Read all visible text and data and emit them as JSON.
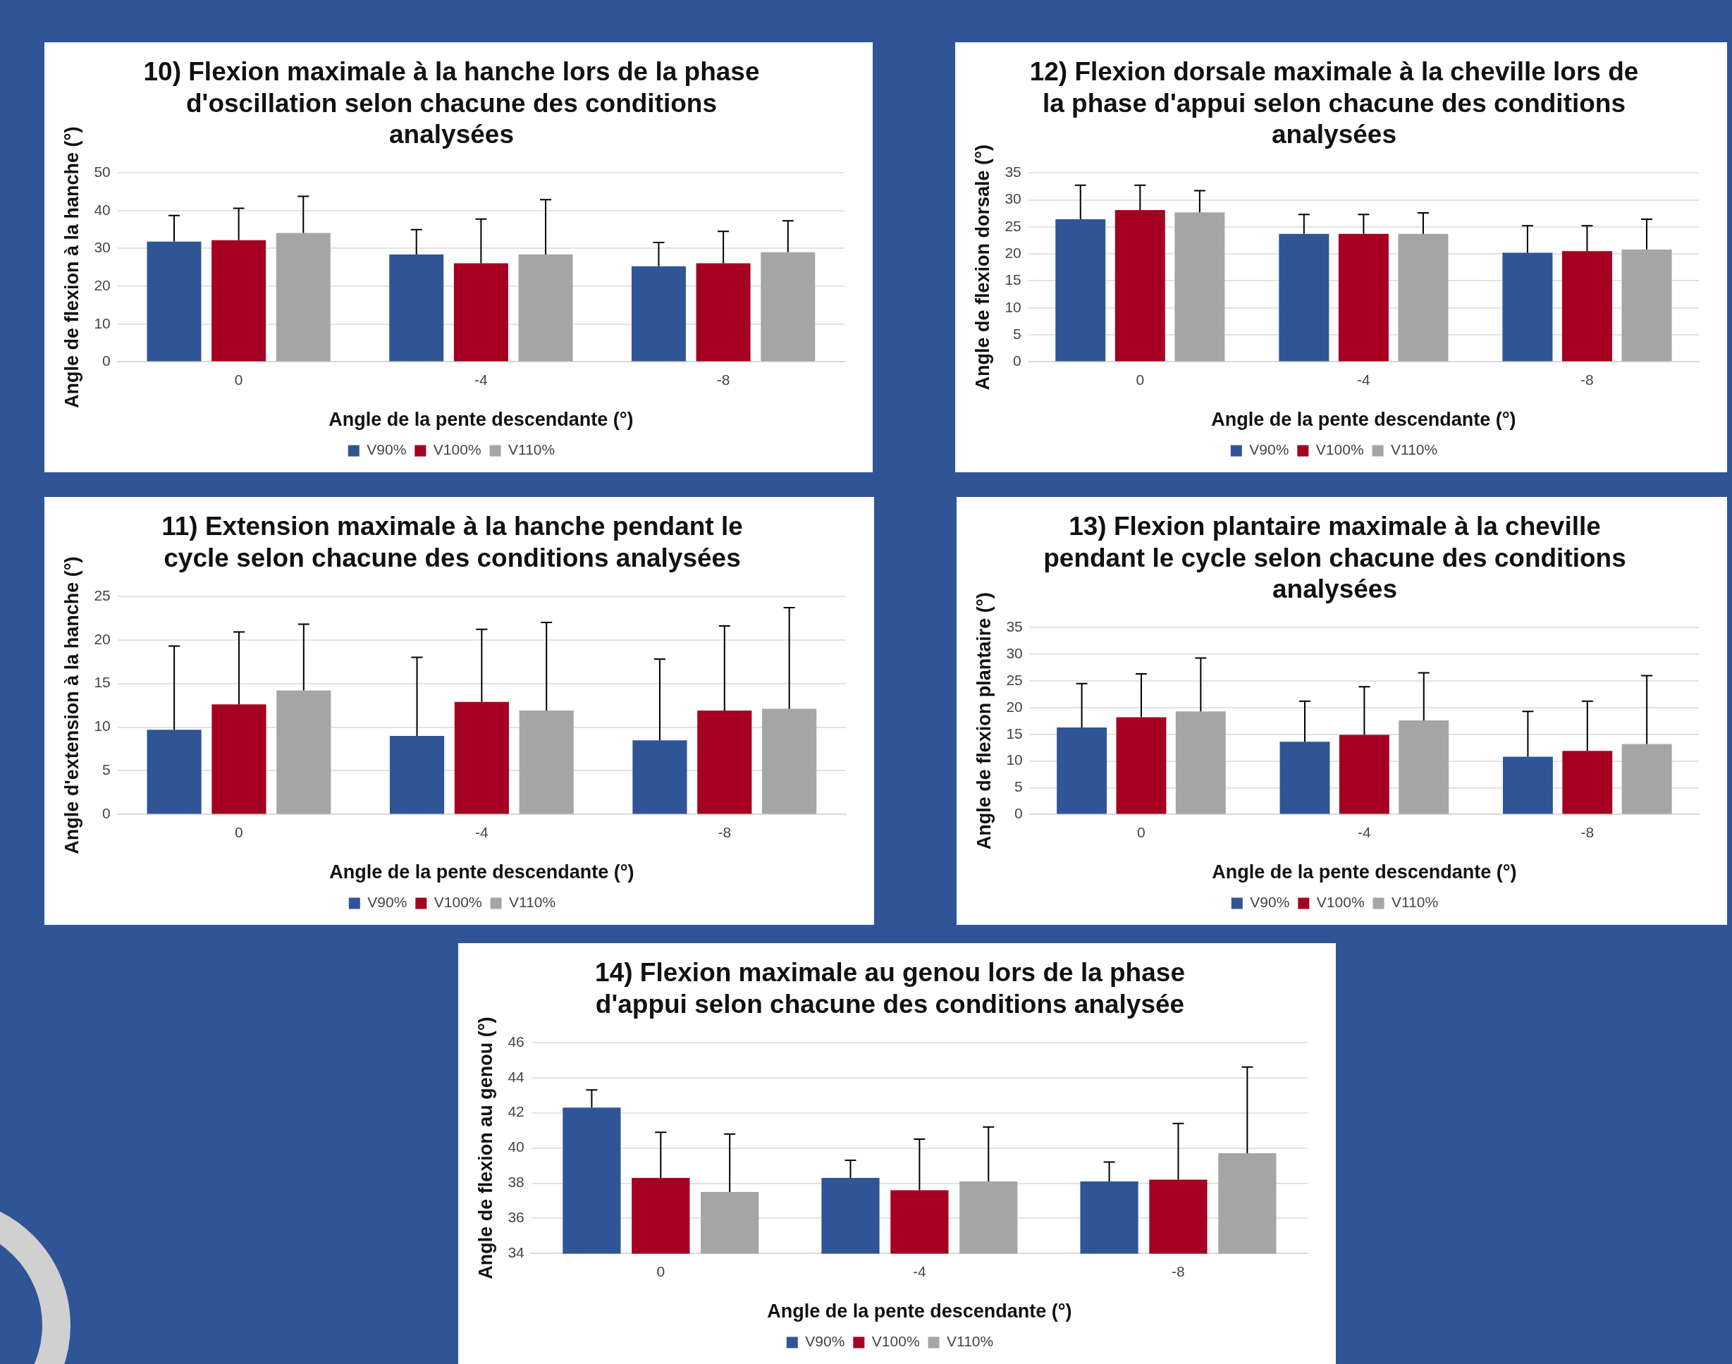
{
  "chart_data": [
    {
      "type": "bar",
      "title": "10) Flexion maximale à la hanche lors de la phase d'oscillation selon chacune des conditions analysées",
      "xlabel": "Angle de la pente descendante (°)",
      "ylabel": "Angle de flexion à la hanche (°)",
      "categories": [
        "0",
        "-4",
        "-8"
      ],
      "ylim": [
        0,
        50
      ],
      "yticks": [
        0,
        10,
        20,
        30,
        40,
        50
      ],
      "grid": "y",
      "legend": "bottom",
      "series": [
        {
          "name": "V90%",
          "color": "#2f5597",
          "values": [
            31.8,
            28.4,
            25.3
          ],
          "errors": [
            [
              31.8,
              38.7
            ],
            [
              28.4,
              35
            ],
            [
              25.3,
              31.6
            ]
          ]
        },
        {
          "name": "V100%",
          "color": "#a50021",
          "values": [
            32.2,
            26.1,
            26.1
          ],
          "errors": [
            [
              32.2,
              40.6
            ],
            [
              26.1,
              37.8
            ],
            [
              26.1,
              34.5
            ]
          ]
        },
        {
          "name": "V110%",
          "color": "#a5a5a5",
          "values": [
            34.1,
            28.4,
            29
          ],
          "errors": [
            [
              34.1,
              43.8
            ],
            [
              28.4,
              42.9
            ],
            [
              29,
              37.3
            ]
          ]
        }
      ]
    },
    {
      "type": "bar",
      "title": "12) Flexion dorsale maximale à la cheville lors de la phase d'appui selon chacune des conditions analysées",
      "xlabel": "Angle de la pente descendante (°)",
      "ylabel": "Angle de flexion dorsale (°)",
      "categories": [
        "0",
        "-4",
        "-8"
      ],
      "ylim": [
        0,
        35
      ],
      "yticks": [
        0,
        5,
        10,
        15,
        20,
        25,
        30,
        35
      ],
      "grid": "y",
      "legend": "bottom",
      "series": [
        {
          "name": "V90%",
          "color": "#2f5597",
          "values": [
            26.4,
            23.7,
            20.2
          ],
          "errors": [
            [
              26.4,
              32.7
            ],
            [
              23.7,
              27.3
            ],
            [
              20.2,
              25.2
            ]
          ]
        },
        {
          "name": "V100%",
          "color": "#a50021",
          "values": [
            28.1,
            23.7,
            20.5
          ],
          "errors": [
            [
              28.1,
              32.7
            ],
            [
              23.7,
              27.3
            ],
            [
              20.5,
              25.2
            ]
          ]
        },
        {
          "name": "V110%",
          "color": "#a5a5a5",
          "values": [
            27.7,
            23.7,
            20.8
          ],
          "errors": [
            [
              27.7,
              31.7
            ],
            [
              23.7,
              27.6
            ],
            [
              20.8,
              26.4
            ]
          ]
        }
      ]
    },
    {
      "type": "bar",
      "title": "11) Extension maximale à la hanche pendant le cycle selon chacune des conditions analysées",
      "xlabel": "Angle de la pente descendante (°)",
      "ylabel": "Angle d'extension à la hanche (°)",
      "categories": [
        "0",
        "-4",
        "-8"
      ],
      "ylim": [
        0,
        25
      ],
      "yticks": [
        0,
        5,
        10,
        15,
        20,
        25
      ],
      "grid": "y",
      "legend": "bottom",
      "series": [
        {
          "name": "V90%",
          "color": "#2f5597",
          "values": [
            9.7,
            9,
            8.5
          ],
          "errors": [
            [
              9.7,
              19.3
            ],
            [
              9,
              18
            ],
            [
              8.5,
              17.8
            ]
          ]
        },
        {
          "name": "V100%",
          "color": "#a50021",
          "values": [
            12.6,
            12.9,
            11.9
          ],
          "errors": [
            [
              12.6,
              20.9
            ],
            [
              12.9,
              21.2
            ],
            [
              11.9,
              21.6
            ]
          ]
        },
        {
          "name": "V110%",
          "color": "#a5a5a5",
          "values": [
            14.2,
            11.9,
            12.1
          ],
          "errors": [
            [
              14.2,
              21.8
            ],
            [
              11.9,
              22
            ],
            [
              12.1,
              23.7
            ]
          ]
        }
      ]
    },
    {
      "type": "bar",
      "title": "13) Flexion plantaire maximale à la cheville pendant le cycle selon chacune des conditions analysées",
      "xlabel": "Angle de la pente descendante (°)",
      "ylabel": "Angle de flexion plantaire (°)",
      "categories": [
        "0",
        "-4",
        "-8"
      ],
      "ylim": [
        0,
        35
      ],
      "yticks": [
        0,
        5,
        10,
        15,
        20,
        25,
        30,
        35
      ],
      "grid": "y",
      "legend": "bottom",
      "series": [
        {
          "name": "V90%",
          "color": "#2f5597",
          "values": [
            16.3,
            13.6,
            10.8
          ],
          "errors": [
            [
              16.3,
              24.5
            ],
            [
              13.6,
              21.2
            ],
            [
              10.8,
              19.3
            ]
          ]
        },
        {
          "name": "V100%",
          "color": "#a50021",
          "values": [
            18.2,
            14.9,
            11.9
          ],
          "errors": [
            [
              18.2,
              26.3
            ],
            [
              14.9,
              23.9
            ],
            [
              11.9,
              21.2
            ]
          ]
        },
        {
          "name": "V110%",
          "color": "#a5a5a5",
          "values": [
            19.3,
            17.6,
            13.2
          ],
          "errors": [
            [
              19.3,
              29.3
            ],
            [
              17.6,
              26.5
            ],
            [
              13.2,
              26
            ]
          ]
        }
      ]
    },
    {
      "type": "bar",
      "title": "14) Flexion maximale au genou lors de la phase d'appui selon chacune des conditions analysée",
      "xlabel": "Angle de la pente descendante (°)",
      "ylabel": "Angle de flexion au genou (°)",
      "categories": [
        "0",
        "-4",
        "-8"
      ],
      "ylim": [
        34,
        46
      ],
      "yticks": [
        34,
        36,
        38,
        40,
        42,
        44,
        46
      ],
      "grid": "y",
      "legend": "bottom",
      "series": [
        {
          "name": "V90%",
          "color": "#2f5597",
          "values": [
            42.3,
            38.3,
            38.1
          ],
          "errors": [
            [
              42.3,
              43.3
            ],
            [
              38.3,
              39.3
            ],
            [
              38.1,
              39.2
            ]
          ]
        },
        {
          "name": "V100%",
          "color": "#a50021",
          "values": [
            38.3,
            37.6,
            38.2
          ],
          "errors": [
            [
              38.3,
              40.9
            ],
            [
              37.6,
              40.5
            ],
            [
              38.2,
              41.4
            ]
          ]
        },
        {
          "name": "V110%",
          "color": "#a5a5a5",
          "values": [
            37.5,
            38.1,
            39.7
          ],
          "errors": [
            [
              37.5,
              40.8
            ],
            [
              38.1,
              41.2
            ],
            [
              39.7,
              44.6
            ]
          ]
        }
      ]
    }
  ]
}
